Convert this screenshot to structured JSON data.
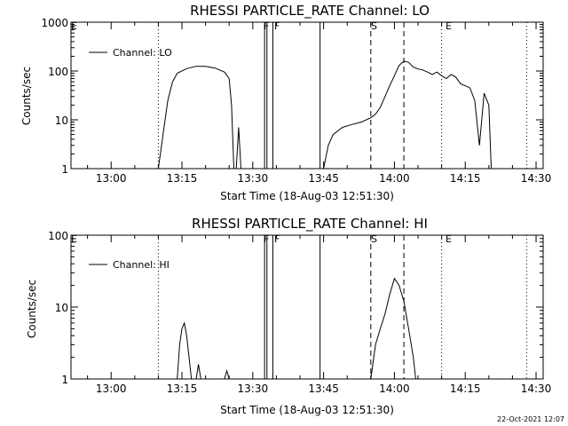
{
  "chart_data": [
    {
      "type": "line",
      "title": "RHESSI PARTICLE_RATE Channel: LO",
      "xlabel": "Start Time (18-Aug-03 12:51:30)",
      "ylabel": "Counts/sec",
      "y_scale": "log",
      "ylim": [
        1,
        1000
      ],
      "y_ticks": [
        1,
        10,
        100,
        1000
      ],
      "y_tick_labels": [
        "1",
        "10",
        "100",
        "1000"
      ],
      "xlim": [
        "12:51:30",
        "14:31:30"
      ],
      "x_ticks": [
        "13:00",
        "13:15",
        "13:30",
        "13:45",
        "14:00",
        "14:15",
        "14:30"
      ],
      "legend": {
        "position": "top-left",
        "entries": [
          "Channel: LO"
        ]
      },
      "dotted_lines": [
        "13:10",
        "14:10",
        "14:28"
      ],
      "solid_lines": [
        "13:32:30",
        "13:33:00",
        "13:34:15",
        "13:44:15"
      ],
      "dashed_lines": [
        "13:55",
        "14:02"
      ],
      "markers": [
        {
          "label": "E",
          "time": "12:52"
        },
        {
          "label": "F",
          "time": "13:32:30"
        },
        {
          "label": "F",
          "time": "13:34:15"
        },
        {
          "label": "S",
          "time": "13:55"
        },
        {
          "label": "E",
          "time": "14:10"
        }
      ],
      "series": [
        {
          "name": "Channel: LO",
          "segments": [
            [
              [
                "13:10",
                "1"
              ],
              [
                "13:11",
                "5"
              ],
              [
                "13:12",
                "25"
              ],
              [
                "13:13",
                "60"
              ],
              [
                "13:14",
                "90"
              ],
              [
                "13:16",
                "112"
              ],
              [
                "13:18",
                "125"
              ],
              [
                "13:20",
                "125"
              ],
              [
                "13:22",
                "115"
              ],
              [
                "13:24",
                "95"
              ],
              [
                "13:25",
                "70"
              ],
              [
                "13:25:30",
                "20"
              ],
              [
                "13:26",
                "1"
              ]
            ],
            [
              [
                "13:26:30",
                "1"
              ],
              [
                "13:27",
                "7"
              ],
              [
                "13:27:30",
                "1"
              ]
            ],
            [
              [
                "13:45:00",
                "1"
              ],
              [
                "13:46",
                "3"
              ],
              [
                "13:47",
                "5"
              ],
              [
                "13:49",
                "7"
              ],
              [
                "13:51",
                "8"
              ],
              [
                "13:53",
                "9"
              ],
              [
                "13:55",
                "11"
              ],
              [
                "13:56",
                "13"
              ],
              [
                "13:57",
                "18"
              ],
              [
                "13:58",
                "30"
              ],
              [
                "13:59",
                "50"
              ],
              [
                "14:00",
                "80"
              ],
              [
                "14:01",
                "130"
              ],
              [
                "14:02",
                "160"
              ],
              [
                "14:03",
                "150"
              ],
              [
                "14:04",
                "120"
              ],
              [
                "14:05",
                "110"
              ],
              [
                "14:06",
                "105"
              ],
              [
                "14:07",
                "95"
              ],
              [
                "14:08",
                "85"
              ],
              [
                "14:09",
                "95"
              ],
              [
                "14:10",
                "80"
              ],
              [
                "14:11",
                "70"
              ],
              [
                "14:12",
                "85"
              ],
              [
                "14:13",
                "75"
              ],
              [
                "14:14",
                "55"
              ],
              [
                "14:15",
                "50"
              ],
              [
                "14:16",
                "45"
              ],
              [
                "14:17",
                "25"
              ],
              [
                "14:18",
                "3"
              ],
              [
                "14:19",
                "35"
              ],
              [
                "14:20",
                "20"
              ],
              [
                "14:20:30",
                "1"
              ]
            ]
          ]
        }
      ]
    },
    {
      "type": "line",
      "title": "RHESSI PARTICLE_RATE Channel: HI",
      "xlabel": "Start Time (18-Aug-03 12:51:30)",
      "ylabel": "Counts/sec",
      "y_scale": "log",
      "ylim": [
        1,
        100
      ],
      "y_ticks": [
        1,
        10,
        100
      ],
      "y_tick_labels": [
        "1",
        "10",
        "100"
      ],
      "xlim": [
        "12:51:30",
        "14:31:30"
      ],
      "x_ticks": [
        "13:00",
        "13:15",
        "13:30",
        "13:45",
        "14:00",
        "14:15",
        "14:30"
      ],
      "legend": {
        "position": "top-left",
        "entries": [
          "Channel: HI"
        ]
      },
      "dotted_lines": [
        "13:10",
        "14:10",
        "14:28"
      ],
      "solid_lines": [
        "13:32:30",
        "13:33:00",
        "13:34:15",
        "13:44:15"
      ],
      "dashed_lines": [
        "13:55",
        "14:02"
      ],
      "markers": [
        {
          "label": "E",
          "time": "12:52"
        },
        {
          "label": "F",
          "time": "13:32:30"
        },
        {
          "label": "F",
          "time": "13:34:15"
        },
        {
          "label": "S",
          "time": "13:55"
        },
        {
          "label": "E",
          "time": "14:10"
        }
      ],
      "series": [
        {
          "name": "Channel: HI",
          "segments": [
            [
              [
                "13:14:00",
                "1"
              ],
              [
                "13:14:30",
                "3"
              ],
              [
                "13:15",
                "5"
              ],
              [
                "13:15:30",
                "6"
              ],
              [
                "13:16",
                "4"
              ],
              [
                "13:16:30",
                "2"
              ],
              [
                "13:17",
                "1"
              ]
            ],
            [
              [
                "13:18:00",
                "1"
              ],
              [
                "13:18:30",
                "1.6"
              ],
              [
                "13:19",
                "1"
              ]
            ],
            [
              [
                "13:24:00",
                "1"
              ],
              [
                "13:24:30",
                "1.3"
              ],
              [
                "13:25",
                "1"
              ]
            ],
            [
              [
                "13:55",
                "1"
              ],
              [
                "13:56",
                "3"
              ],
              [
                "13:57",
                "5"
              ],
              [
                "13:58",
                "8"
              ],
              [
                "13:59",
                "15"
              ],
              [
                "14:00",
                "25"
              ],
              [
                "14:01",
                "20"
              ],
              [
                "14:02",
                "12"
              ],
              [
                "14:03",
                "5"
              ],
              [
                "14:04",
                "2"
              ],
              [
                "14:04:30",
                "1"
              ]
            ]
          ]
        }
      ]
    }
  ],
  "footer": {
    "timestamp": "22-Oct-2021 12:07"
  }
}
